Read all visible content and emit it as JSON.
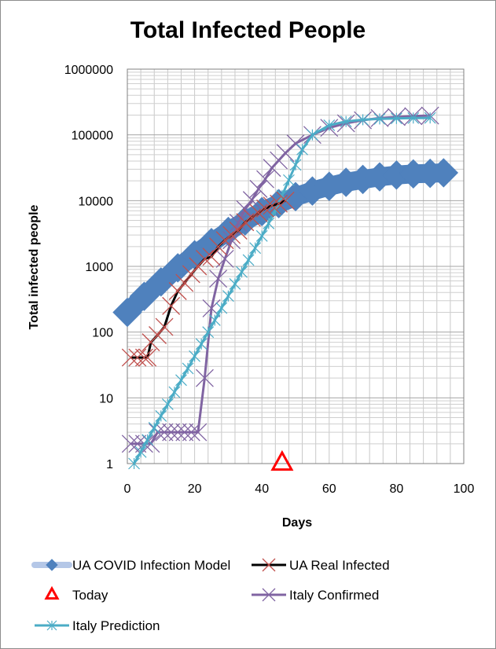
{
  "chart_data": {
    "type": "line",
    "title": "Total Infected People",
    "xlabel": "Days",
    "ylabel": "Total infected people",
    "xlim": [
      0,
      100
    ],
    "ylim": [
      1,
      1000000
    ],
    "yscale": "log",
    "grid": true,
    "legend_position": "bottom",
    "x_ticks": [
      "0",
      "20",
      "40",
      "60",
      "80",
      "100"
    ],
    "y_ticks": [
      "1",
      "10",
      "100",
      "1000",
      "10000",
      "100000",
      "1000000"
    ],
    "series": [
      {
        "name": "UA COVID Infection Model",
        "color": "#4f81bd",
        "marker": "diamond",
        "x": [
          0,
          5,
          10,
          15,
          20,
          25,
          30,
          35,
          40,
          45,
          50,
          55,
          60,
          65,
          70,
          75,
          80,
          85,
          90,
          94
        ],
        "y": [
          200,
          350,
          580,
          950,
          1500,
          2300,
          3400,
          4900,
          6800,
          9000,
          11500,
          14000,
          16500,
          19000,
          21000,
          23000,
          24500,
          25500,
          26000,
          26500
        ]
      },
      {
        "name": "UA Real Infected",
        "color": "#000000",
        "marker_color": "#c0504d",
        "marker": "x",
        "x": [
          1,
          3,
          5,
          6,
          7,
          9,
          11,
          13,
          15,
          17,
          19,
          21,
          23,
          25,
          27,
          29,
          31,
          33,
          35,
          37,
          39,
          41,
          43,
          45,
          47
        ],
        "y": [
          41,
          41,
          41,
          41,
          70,
          90,
          120,
          250,
          420,
          560,
          760,
          1000,
          1300,
          1400,
          2000,
          2500,
          3000,
          3500,
          4700,
          5500,
          6500,
          7600,
          8400,
          9000,
          10000
        ]
      },
      {
        "name": "Today",
        "color": "#ff0000",
        "marker": "triangle",
        "x": [
          46
        ],
        "y": [
          1
        ]
      },
      {
        "name": "Italy Confirmed",
        "color": "#8064a2",
        "marker": "x",
        "x": [
          1,
          3,
          5,
          7,
          9,
          11,
          13,
          15,
          17,
          19,
          21,
          23,
          25,
          27,
          29,
          31,
          33,
          35,
          37,
          39,
          41,
          43,
          45,
          47,
          50,
          55,
          60,
          65,
          70,
          75,
          80,
          85,
          90
        ],
        "y": [
          2,
          2,
          2,
          2,
          3,
          3,
          3,
          3,
          3,
          3,
          3,
          20,
          230,
          650,
          1300,
          2500,
          4600,
          7400,
          10200,
          15100,
          21200,
          31500,
          41000,
          53000,
          74000,
          100000,
          128000,
          150000,
          167000,
          180000,
          187000,
          193000,
          197000
        ]
      },
      {
        "name": "Italy Prediction",
        "color": "#4bacc6",
        "marker": "star",
        "x": [
          2,
          4,
          6,
          8,
          10,
          12,
          14,
          16,
          18,
          20,
          22,
          24,
          26,
          28,
          30,
          32,
          34,
          36,
          38,
          40,
          42,
          44,
          46,
          48,
          50,
          52,
          55,
          60,
          65,
          70,
          75,
          80,
          85,
          90
        ],
        "y": [
          1,
          1.5,
          2.3,
          3.5,
          5.3,
          8,
          12.2,
          18.6,
          28,
          43,
          66,
          100,
          152,
          232,
          354,
          540,
          820,
          1250,
          1900,
          2900,
          4500,
          7200,
          12000,
          20500,
          35000,
          60000,
          100000,
          140000,
          160000,
          170000,
          175000,
          178000,
          180000,
          181000
        ]
      }
    ]
  }
}
